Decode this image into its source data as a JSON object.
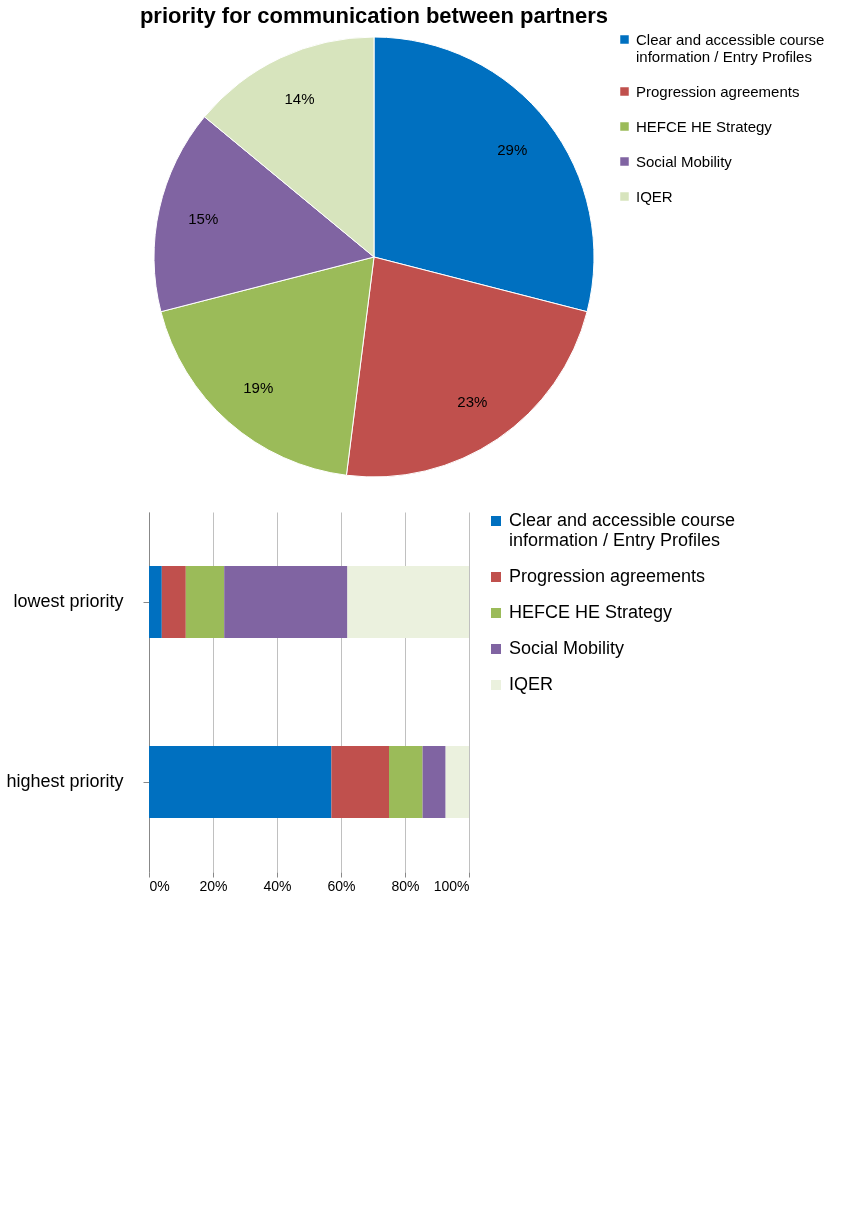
{
  "chart_data": [
    {
      "type": "pie",
      "title": "priority for communication between partners",
      "categories": [
        "Clear and accessible course information / Entry Profiles",
        "Progression agreements",
        "HEFCE HE Strategy",
        "Social Mobility",
        "IQER"
      ],
      "values": [
        29,
        23,
        19,
        15,
        14
      ],
      "colors": [
        "#0070c0",
        "#c0504d",
        "#9bbb59",
        "#8064a2",
        "#d7e4bd"
      ],
      "value_labels": [
        "29%",
        "23%",
        "19%",
        "15%",
        "14%"
      ],
      "legend": "right"
    },
    {
      "type": "bar",
      "orientation": "horizontal",
      "stacked": true,
      "categories": [
        "lowest priority",
        "highest priority"
      ],
      "series": [
        {
          "name": "Clear and accessible course information / Entry Profiles",
          "color": "#0070c0",
          "values": [
            4,
            57
          ]
        },
        {
          "name": "Progression agreements",
          "color": "#c0504d",
          "values": [
            7.5,
            18
          ]
        },
        {
          "name": "HEFCE HE Strategy",
          "color": "#9bbb59",
          "values": [
            12,
            10.5
          ]
        },
        {
          "name": "Social Mobility",
          "color": "#8064a2",
          "values": [
            38.5,
            7.2
          ]
        },
        {
          "name": "IQER",
          "color": "#ebf1de",
          "values": [
            38,
            7.3
          ]
        }
      ],
      "xlim": [
        0,
        100
      ],
      "xticks": [
        {
          "value": 0,
          "label": "0%"
        },
        {
          "value": 20,
          "label": "20%"
        },
        {
          "value": 40,
          "label": "40%"
        },
        {
          "value": 60,
          "label": "60%"
        },
        {
          "value": 80,
          "label": "80%"
        },
        {
          "value": 100,
          "label": "100%"
        }
      ],
      "grid": "x",
      "legend": "right"
    }
  ]
}
